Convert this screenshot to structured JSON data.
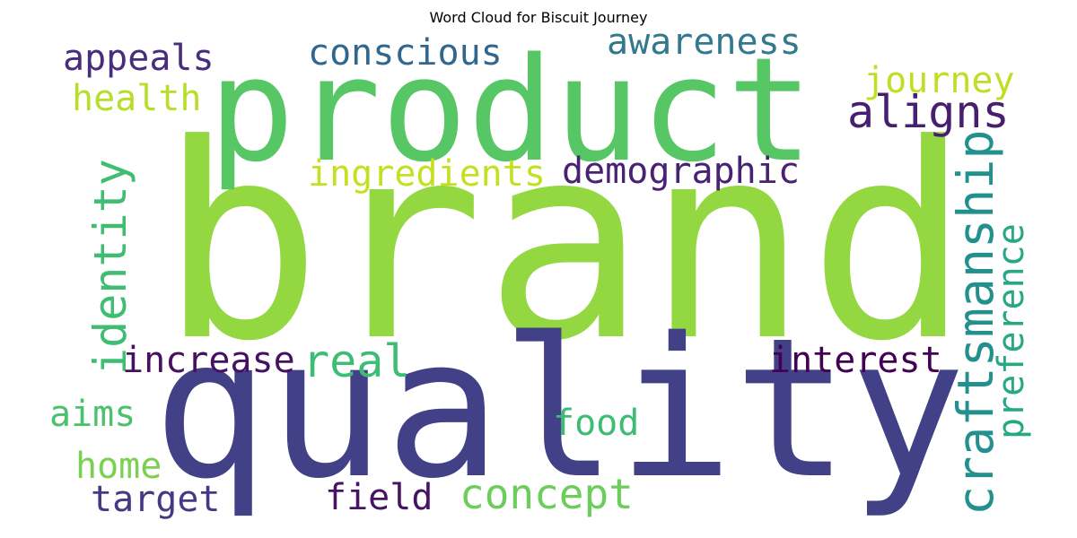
{
  "chart_data": {
    "type": "wordcloud",
    "title": "Word Cloud for Biscuit Journey",
    "words": [
      {
        "text": "brand",
        "weight": 100,
        "color": "#93d741",
        "rotation": 0
      },
      {
        "text": "quality",
        "weight": 78,
        "color": "#424086",
        "rotation": 0
      },
      {
        "text": "product",
        "weight": 58,
        "color": "#57c665",
        "rotation": 0
      },
      {
        "text": "craftsmanship",
        "weight": 20,
        "color": "#22908c",
        "rotation": -90
      },
      {
        "text": "concept",
        "weight": 17,
        "color": "#6ccd5a",
        "rotation": 0
      },
      {
        "text": "real",
        "weight": 17,
        "color": "#3cbc74",
        "rotation": 0
      },
      {
        "text": "aligns",
        "weight": 17,
        "color": "#481f70",
        "rotation": 0
      },
      {
        "text": "identity",
        "weight": 17,
        "color": "#40bd72",
        "rotation": -90
      },
      {
        "text": "preference",
        "weight": 15,
        "color": "#27a882",
        "rotation": -90
      },
      {
        "text": "appeals",
        "weight": 14,
        "color": "#472d7b",
        "rotation": 0
      },
      {
        "text": "conscious",
        "weight": 14,
        "color": "#31678e",
        "rotation": 0
      },
      {
        "text": "awareness",
        "weight": 14,
        "color": "#33798d",
        "rotation": 0
      },
      {
        "text": "journey",
        "weight": 14,
        "color": "#bfdf25",
        "rotation": 0
      },
      {
        "text": "health",
        "weight": 14,
        "color": "#b8de29",
        "rotation": 0
      },
      {
        "text": "ingredients",
        "weight": 14,
        "color": "#c5e021",
        "rotation": 0
      },
      {
        "text": "demographic",
        "weight": 14,
        "color": "#482374",
        "rotation": 0
      },
      {
        "text": "increase",
        "weight": 14,
        "color": "#471163",
        "rotation": 0
      },
      {
        "text": "interest",
        "weight": 14,
        "color": "#440154",
        "rotation": 0
      },
      {
        "text": "aims",
        "weight": 13,
        "color": "#4ac16d",
        "rotation": 0
      },
      {
        "text": "food",
        "weight": 13,
        "color": "#3dbc74",
        "rotation": 0
      },
      {
        "text": "home",
        "weight": 13,
        "color": "#7ad151",
        "rotation": 0
      },
      {
        "text": "target",
        "weight": 13,
        "color": "#443a83",
        "rotation": 0
      },
      {
        "text": "field",
        "weight": 13,
        "color": "#471365",
        "rotation": 0
      }
    ]
  }
}
